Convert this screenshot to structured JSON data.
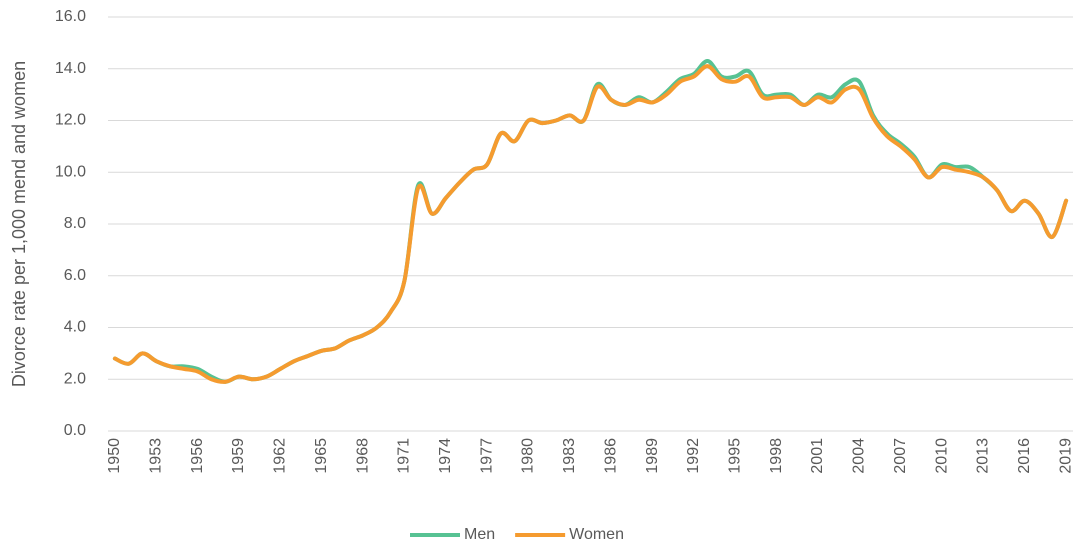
{
  "chart_data": {
    "type": "line",
    "y_label": "Divorce rate per 1,000 mend and women",
    "categories": [
      "1950",
      null,
      null,
      "1953",
      null,
      null,
      "1956",
      null,
      null,
      "1959",
      null,
      null,
      "1962",
      null,
      null,
      "1965",
      null,
      null,
      "1968",
      null,
      null,
      "1971",
      null,
      null,
      "1974",
      null,
      null,
      "1977",
      null,
      null,
      "1980",
      null,
      null,
      "1983",
      null,
      null,
      "1986",
      null,
      null,
      "1989",
      null,
      null,
      "1992",
      null,
      null,
      "1995",
      null,
      null,
      "1998",
      null,
      null,
      "2001",
      null,
      null,
      "2004",
      null,
      null,
      "2007",
      null,
      null,
      "2010",
      null,
      null,
      "2013",
      null,
      null,
      "2016",
      null,
      null,
      "2019"
    ],
    "series": [
      {
        "name": "Men",
        "color": "#57c293",
        "values": [
          2.8,
          2.6,
          3.0,
          2.7,
          2.5,
          2.5,
          2.4,
          2.1,
          1.9,
          2.1,
          2.0,
          2.1,
          2.4,
          2.7,
          2.9,
          3.1,
          3.2,
          3.5,
          3.7,
          4.0,
          4.6,
          5.8,
          9.5,
          8.4,
          9.0,
          9.6,
          10.1,
          10.3,
          11.5,
          11.2,
          12.0,
          11.9,
          12.0,
          12.2,
          12.0,
          13.4,
          12.8,
          12.6,
          12.9,
          12.7,
          13.1,
          13.6,
          13.8,
          14.3,
          13.7,
          13.7,
          13.9,
          13.0,
          13.0,
          13.0,
          12.6,
          13.0,
          12.9,
          13.4,
          13.5,
          12.2,
          11.5,
          11.1,
          10.6,
          9.8,
          10.3,
          10.2,
          10.2,
          9.8,
          9.3,
          8.5,
          8.9,
          8.4,
          7.5,
          8.9
        ]
      },
      {
        "name": "Women",
        "color": "#f59b2f",
        "values": [
          2.8,
          2.6,
          3.0,
          2.7,
          2.5,
          2.4,
          2.3,
          2.0,
          1.9,
          2.1,
          2.0,
          2.1,
          2.4,
          2.7,
          2.9,
          3.1,
          3.2,
          3.5,
          3.7,
          4.0,
          4.6,
          5.8,
          9.4,
          8.4,
          9.0,
          9.6,
          10.1,
          10.3,
          11.5,
          11.2,
          12.0,
          11.9,
          12.0,
          12.2,
          12.0,
          13.3,
          12.8,
          12.6,
          12.8,
          12.7,
          13.0,
          13.5,
          13.7,
          14.1,
          13.6,
          13.5,
          13.7,
          12.9,
          12.9,
          12.9,
          12.6,
          12.9,
          12.7,
          13.2,
          13.2,
          12.1,
          11.4,
          11.0,
          10.5,
          9.8,
          10.2,
          10.1,
          10.0,
          9.8,
          9.3,
          8.5,
          8.9,
          8.4,
          7.5,
          8.9
        ]
      }
    ],
    "ylim": [
      0,
      16
    ],
    "yticks": [
      {
        "value": 0,
        "label": "0.0"
      },
      {
        "value": 2,
        "label": "2.0"
      },
      {
        "value": 4,
        "label": "4.0"
      },
      {
        "value": 6,
        "label": "6.0"
      },
      {
        "value": 8,
        "label": "8.0"
      },
      {
        "value": 10,
        "label": "10.0"
      },
      {
        "value": 12,
        "label": "12.0"
      },
      {
        "value": 14,
        "label": "14.0"
      },
      {
        "value": 16,
        "label": "16.0"
      }
    ],
    "grid": true,
    "legend": "bottom"
  }
}
